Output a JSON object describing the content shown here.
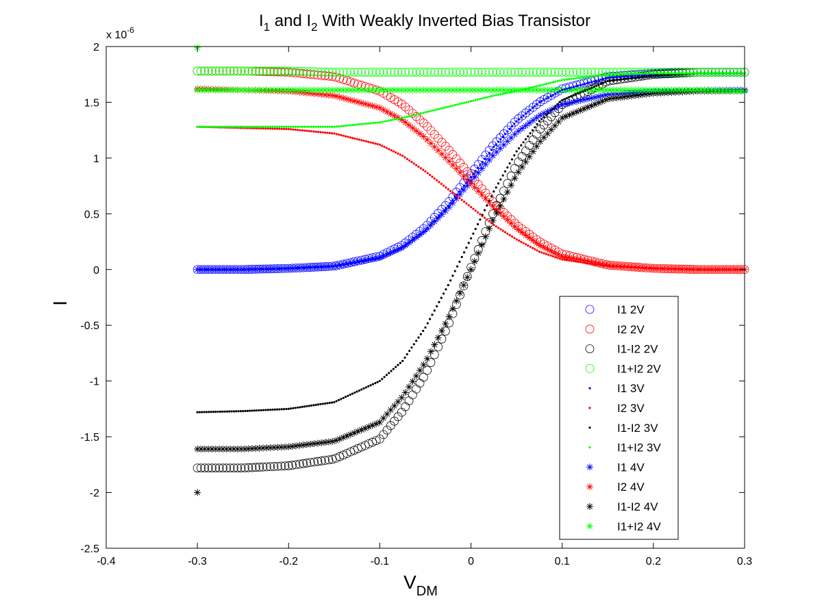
{
  "figure": {
    "title_main": "I",
    "title_sub1": "1",
    "title_mid": " and I",
    "title_sub2": "2",
    "title_rest": " With Weakly Inverted Bias Transistor",
    "ylabel": "I",
    "xlabel_main": "V",
    "xlabel_sub": "DM",
    "exponent_base": "x 10",
    "exponent_power": "-6"
  },
  "chart_data": {
    "type": "scatter",
    "title": "I1 and I2 With Weakly Inverted Bias Transistor",
    "xlabel": "VDM",
    "ylabel": "I",
    "y_scale_note": "x 10^-6",
    "xlim": [
      -0.4,
      0.3
    ],
    "ylim": [
      -2.5,
      2.0
    ],
    "x_ticks": [
      -0.4,
      -0.3,
      -0.2,
      -0.1,
      0,
      0.1,
      0.2,
      0.3
    ],
    "x_tick_labels": [
      "-0.4",
      "-0.3",
      "-0.2",
      "-0.1",
      "0",
      "0.1",
      "0.2",
      "0.3"
    ],
    "y_ticks": [
      -2.5,
      -2,
      -1.5,
      -1,
      -0.5,
      0,
      0.5,
      1,
      1.5,
      2
    ],
    "y_tick_labels": [
      "-2.5",
      "-2",
      "-1.5",
      "-1",
      "-0.5",
      "0",
      "0.5",
      "1",
      "1.5",
      "2"
    ],
    "grid": false,
    "legend_position": "lower-right",
    "x": [
      -0.3,
      -0.25,
      -0.2,
      -0.15,
      -0.1,
      -0.075,
      -0.05,
      -0.025,
      0,
      0.025,
      0.05,
      0.075,
      0.1,
      0.15,
      0.2,
      0.25,
      0.3
    ],
    "series": [
      {
        "name": "I1 2V",
        "color": "#0000ff",
        "marker": "circle",
        "values": [
          0.0,
          0.0,
          0.01,
          0.03,
          0.12,
          0.22,
          0.38,
          0.6,
          0.86,
          1.12,
          1.34,
          1.5,
          1.62,
          1.73,
          1.76,
          1.77,
          1.77
        ]
      },
      {
        "name": "I2 2V",
        "color": "#ff0000",
        "marker": "circle",
        "values": [
          1.78,
          1.78,
          1.77,
          1.73,
          1.6,
          1.48,
          1.3,
          1.08,
          0.84,
          0.6,
          0.4,
          0.25,
          0.14,
          0.04,
          0.01,
          0.0,
          0.0
        ]
      },
      {
        "name": "I1-I2 2V",
        "color": "#000000",
        "marker": "circle",
        "values": [
          -1.78,
          -1.78,
          -1.76,
          -1.7,
          -1.52,
          -1.27,
          -0.94,
          -0.5,
          0.02,
          0.52,
          0.94,
          1.25,
          1.48,
          1.69,
          1.75,
          1.77,
          1.77
        ]
      },
      {
        "name": "I1+I2 2V",
        "color": "#00ff00",
        "marker": "circle",
        "values": [
          1.78,
          1.78,
          1.78,
          1.77,
          1.77,
          1.77,
          1.77,
          1.77,
          1.77,
          1.77,
          1.77,
          1.77,
          1.77,
          1.77,
          1.77,
          1.77,
          1.77
        ]
      },
      {
        "name": "I1 3V",
        "color": "#0000ff",
        "marker": "dot",
        "values": [
          0.0,
          0.0,
          0.01,
          0.03,
          0.1,
          0.2,
          0.35,
          0.57,
          0.83,
          1.1,
          1.33,
          1.5,
          1.61,
          1.72,
          1.75,
          1.76,
          1.76
        ]
      },
      {
        "name": "I2 3V",
        "color": "#ff0000",
        "marker": "dot",
        "values": [
          1.28,
          1.27,
          1.26,
          1.22,
          1.12,
          1.02,
          0.88,
          0.72,
          0.56,
          0.4,
          0.27,
          0.16,
          0.09,
          0.03,
          0.01,
          0.0,
          0.0
        ]
      },
      {
        "name": "I1-I2 3V",
        "color": "#000000",
        "marker": "dot",
        "values": [
          -1.28,
          -1.27,
          -1.25,
          -1.19,
          -1.0,
          -0.82,
          -0.52,
          -0.14,
          0.28,
          0.7,
          1.06,
          1.33,
          1.52,
          1.69,
          1.74,
          1.76,
          1.76
        ]
      },
      {
        "name": "I1+I2 3V",
        "color": "#00ff00",
        "marker": "dot",
        "values": [
          1.28,
          1.28,
          1.28,
          1.28,
          1.32,
          1.36,
          1.41,
          1.46,
          1.51,
          1.56,
          1.6,
          1.65,
          1.7,
          1.75,
          1.76,
          1.76,
          1.76
        ]
      },
      {
        "name": "I1 4V",
        "color": "#0000ff",
        "marker": "star",
        "values": [
          0.0,
          0.0,
          0.01,
          0.03,
          0.11,
          0.2,
          0.35,
          0.55,
          0.79,
          1.03,
          1.23,
          1.38,
          1.48,
          1.57,
          1.6,
          1.61,
          1.61
        ]
      },
      {
        "name": "I2 4V",
        "color": "#ff0000",
        "marker": "star",
        "values": [
          1.62,
          1.61,
          1.6,
          1.56,
          1.45,
          1.34,
          1.18,
          0.98,
          0.77,
          0.56,
          0.37,
          0.22,
          0.12,
          0.04,
          0.01,
          0.0,
          0.0
        ]
      },
      {
        "name": "I1-I2 4V",
        "color": "#000000",
        "marker": "star",
        "values": [
          -1.61,
          -1.61,
          -1.59,
          -1.54,
          -1.37,
          -1.14,
          -0.83,
          -0.44,
          0.0,
          0.46,
          0.85,
          1.14,
          1.36,
          1.53,
          1.58,
          1.6,
          1.6
        ]
      },
      {
        "name": "I1+I2 4V",
        "color": "#00ff00",
        "marker": "star",
        "values": [
          1.61,
          1.61,
          1.61,
          1.61,
          1.61,
          1.61,
          1.61,
          1.61,
          1.61,
          1.61,
          1.61,
          1.61,
          1.61,
          1.61,
          1.61,
          1.61,
          1.6
        ]
      }
    ],
    "outliers": [
      {
        "series": "I1+I2 4V",
        "x": -0.3,
        "y": 1.99
      },
      {
        "series": "I1-I2 4V",
        "x": -0.3,
        "y": -2.0
      }
    ]
  }
}
